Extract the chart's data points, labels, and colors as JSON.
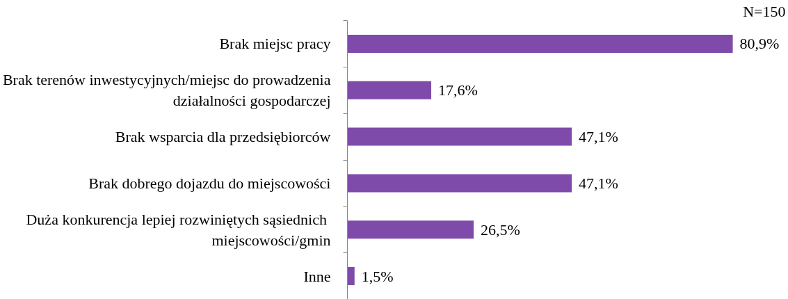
{
  "chart_data": {
    "type": "bar",
    "orientation": "horizontal",
    "categories": [
      "Brak miejsc pracy",
      "Brak terenów inwestycyjnych/miejsc do prowadzenia\ndziałalności gospodarczej",
      "Brak wsparcia dla przedsiębiorców",
      "Brak dobrego dojazdu do miejscowości",
      "Duża konkurencja lepiej  rozwiniętych sąsiednich\nmiejscowości/gmin",
      "Inne"
    ],
    "values": [
      80.9,
      17.6,
      47.1,
      47.1,
      26.5,
      1.5
    ],
    "value_labels": [
      "80,9%",
      "17,6%",
      "47,1%",
      "47,1%",
      "26,5%",
      "1,5%"
    ],
    "color": "#7f4bab",
    "annotations": [
      "N=150"
    ],
    "grid": false
  }
}
